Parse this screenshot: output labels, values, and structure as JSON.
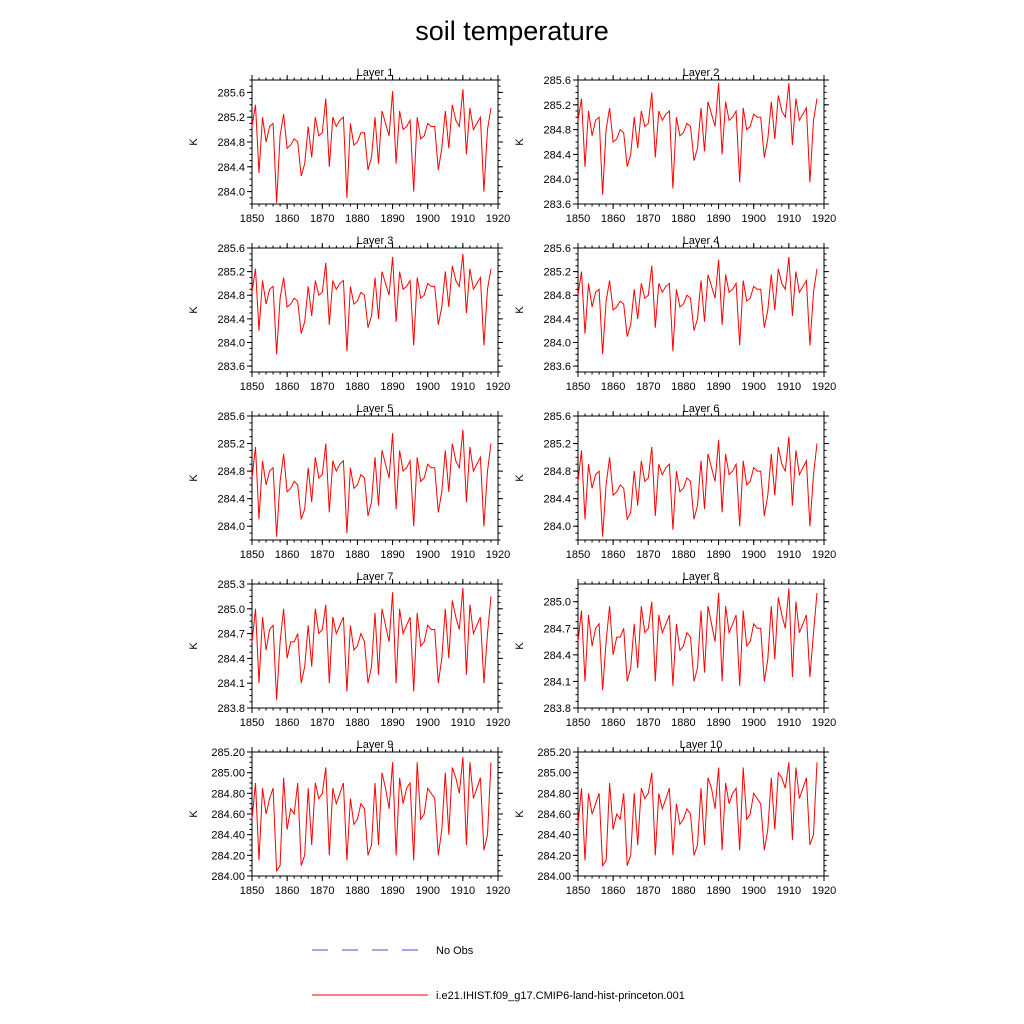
{
  "page": {
    "title": "soil temperature",
    "line_color": "#ff0000",
    "obs_color": "#4a50c8"
  },
  "legend": {
    "obs_label": "No Obs",
    "model_label": "i.e21.IHIST.f09_g17.CMIP6-land-hist-princeton.001",
    "placement": "bottom-center"
  },
  "chart_data": [
    {
      "type": "line",
      "title": "Layer 1",
      "ylabel": "K",
      "xlim": [
        1850,
        1920
      ],
      "ylim": [
        283.8,
        285.8
      ],
      "x_ticks": [
        "1850",
        "1860",
        "1870",
        "1880",
        "1890",
        "1900",
        "1910",
        "1920"
      ],
      "y_ticks": [
        "284.0",
        "284.4",
        "284.8",
        "285.2",
        "285.6"
      ],
      "grid": false,
      "series": [
        {
          "x_start": 1850,
          "x_step": 1,
          "values": [
            285.05,
            285.4,
            284.3,
            285.2,
            284.8,
            285.05,
            285.1,
            283.82,
            284.9,
            285.25,
            284.7,
            284.75,
            284.85,
            284.8,
            284.25,
            284.45,
            285.05,
            284.55,
            285.2,
            284.9,
            284.95,
            285.5,
            284.4,
            285.2,
            285.05,
            285.15,
            285.2,
            283.9,
            285.1,
            284.75,
            284.8,
            284.95,
            284.95,
            284.35,
            284.55,
            285.2,
            284.45,
            285.3,
            285.1,
            284.9,
            285.62,
            284.45,
            285.3,
            285.0,
            285.05,
            285.15,
            284.0,
            285.2,
            284.85,
            284.9,
            285.1,
            285.05,
            285.05,
            284.35,
            284.7,
            285.3,
            284.7,
            285.4,
            285.15,
            285.05,
            285.65,
            284.6,
            285.35,
            285.0,
            285.1,
            285.2,
            284.0,
            285.0,
            285.35
          ]
        }
      ]
    },
    {
      "type": "line",
      "title": "Layer 2",
      "ylabel": "K",
      "xlim": [
        1850,
        1920
      ],
      "ylim": [
        283.6,
        285.6
      ],
      "x_ticks": [
        "1850",
        "1860",
        "1870",
        "1880",
        "1890",
        "1900",
        "1910",
        "1920"
      ],
      "y_ticks": [
        "283.6",
        "284.0",
        "284.4",
        "284.8",
        "285.2",
        "285.6"
      ],
      "grid": false,
      "series": [
        {
          "x_start": 1850,
          "x_step": 1,
          "values": [
            284.95,
            285.3,
            284.2,
            285.1,
            284.7,
            284.95,
            285.0,
            283.75,
            284.8,
            285.15,
            284.6,
            284.65,
            284.8,
            284.75,
            284.2,
            284.4,
            285.0,
            284.5,
            285.1,
            284.85,
            284.9,
            285.4,
            284.35,
            285.1,
            284.95,
            285.05,
            285.1,
            283.85,
            285.0,
            284.7,
            284.75,
            284.9,
            284.85,
            284.3,
            284.5,
            285.15,
            284.45,
            285.25,
            285.05,
            284.85,
            285.55,
            284.4,
            285.25,
            284.95,
            285.0,
            285.1,
            283.95,
            285.15,
            284.8,
            284.85,
            285.05,
            285.0,
            285.0,
            284.35,
            284.65,
            285.25,
            284.65,
            285.35,
            285.1,
            285.0,
            285.55,
            284.55,
            285.3,
            284.95,
            285.05,
            285.15,
            283.95,
            284.95,
            285.3
          ]
        }
      ]
    },
    {
      "type": "line",
      "title": "Layer 3",
      "ylabel": "K",
      "xlim": [
        1850,
        1920
      ],
      "ylim": [
        283.5,
        285.6
      ],
      "x_ticks": [
        "1850",
        "1860",
        "1870",
        "1880",
        "1890",
        "1900",
        "1910",
        "1920"
      ],
      "y_ticks": [
        "283.6",
        "284.0",
        "284.4",
        "284.8",
        "285.2",
        "285.6"
      ],
      "grid": false,
      "series": [
        {
          "x_start": 1850,
          "x_step": 1,
          "values": [
            284.85,
            285.25,
            284.2,
            285.05,
            284.65,
            284.9,
            284.95,
            283.8,
            284.75,
            285.1,
            284.6,
            284.65,
            284.75,
            284.7,
            284.15,
            284.35,
            284.95,
            284.45,
            285.05,
            284.8,
            284.85,
            285.35,
            284.3,
            285.05,
            284.9,
            285.0,
            285.05,
            283.85,
            284.95,
            284.65,
            284.7,
            284.85,
            284.8,
            284.25,
            284.45,
            285.1,
            284.4,
            285.2,
            285.0,
            284.8,
            285.45,
            284.35,
            285.2,
            284.9,
            284.95,
            285.05,
            283.95,
            285.1,
            284.75,
            284.8,
            285.0,
            284.95,
            284.95,
            284.3,
            284.6,
            285.2,
            284.6,
            285.3,
            285.05,
            284.95,
            285.5,
            284.5,
            285.25,
            284.9,
            285.0,
            285.1,
            283.95,
            284.9,
            285.25
          ]
        }
      ]
    },
    {
      "type": "line",
      "title": "Layer 4",
      "ylabel": "K",
      "xlim": [
        1850,
        1920
      ],
      "ylim": [
        283.5,
        285.6
      ],
      "x_ticks": [
        "1850",
        "1860",
        "1870",
        "1880",
        "1890",
        "1900",
        "1910",
        "1920"
      ],
      "y_ticks": [
        "283.6",
        "284.0",
        "284.4",
        "284.8",
        "285.2",
        "285.6"
      ],
      "grid": false,
      "series": [
        {
          "x_start": 1850,
          "x_step": 1,
          "values": [
            284.8,
            285.2,
            284.15,
            285.0,
            284.6,
            284.85,
            284.9,
            283.8,
            284.7,
            285.05,
            284.55,
            284.6,
            284.7,
            284.65,
            284.1,
            284.3,
            284.9,
            284.4,
            285.0,
            284.75,
            284.8,
            285.3,
            284.25,
            285.0,
            284.85,
            284.95,
            285.0,
            283.85,
            284.9,
            284.6,
            284.65,
            284.8,
            284.75,
            284.2,
            284.4,
            285.05,
            284.35,
            285.15,
            284.95,
            284.75,
            285.4,
            284.3,
            285.15,
            284.85,
            284.9,
            285.0,
            283.95,
            285.05,
            284.7,
            284.75,
            284.95,
            284.9,
            284.9,
            284.25,
            284.55,
            285.15,
            284.55,
            285.25,
            285.0,
            284.9,
            285.45,
            284.45,
            285.2,
            284.85,
            284.95,
            285.05,
            283.95,
            284.85,
            285.25
          ]
        }
      ]
    },
    {
      "type": "line",
      "title": "Layer 5",
      "ylabel": "K",
      "xlim": [
        1850,
        1920
      ],
      "ylim": [
        283.8,
        285.6
      ],
      "x_ticks": [
        "1850",
        "1860",
        "1870",
        "1880",
        "1890",
        "1900",
        "1910",
        "1920"
      ],
      "y_ticks": [
        "284.0",
        "284.4",
        "284.8",
        "285.2",
        "285.6"
      ],
      "grid": false,
      "series": [
        {
          "x_start": 1850,
          "x_step": 1,
          "values": [
            284.7,
            285.15,
            284.1,
            284.95,
            284.6,
            284.8,
            284.85,
            283.85,
            284.65,
            285.05,
            284.5,
            284.55,
            284.65,
            284.6,
            284.1,
            284.25,
            284.85,
            284.35,
            285.0,
            284.7,
            284.75,
            285.2,
            284.2,
            284.95,
            284.8,
            284.9,
            284.95,
            283.9,
            284.85,
            284.55,
            284.6,
            284.75,
            284.7,
            284.15,
            284.35,
            285.0,
            284.3,
            285.1,
            284.9,
            284.7,
            285.35,
            284.25,
            285.1,
            284.8,
            284.85,
            284.95,
            284.0,
            285.0,
            284.65,
            284.7,
            284.9,
            284.85,
            284.85,
            284.2,
            284.5,
            285.1,
            284.5,
            285.2,
            284.95,
            284.85,
            285.4,
            284.35,
            285.15,
            284.8,
            284.9,
            285.0,
            284.0,
            284.8,
            285.2
          ]
        }
      ]
    },
    {
      "type": "line",
      "title": "Layer 6",
      "ylabel": "K",
      "xlim": [
        1850,
        1920
      ],
      "ylim": [
        283.8,
        285.6
      ],
      "x_ticks": [
        "1850",
        "1860",
        "1870",
        "1880",
        "1890",
        "1900",
        "1910",
        "1920"
      ],
      "y_ticks": [
        "284.0",
        "284.4",
        "284.8",
        "285.2",
        "285.6"
      ],
      "grid": false,
      "series": [
        {
          "x_start": 1850,
          "x_step": 1,
          "values": [
            284.65,
            285.1,
            284.1,
            284.9,
            284.55,
            284.75,
            284.8,
            283.85,
            284.6,
            285.0,
            284.45,
            284.5,
            284.6,
            284.55,
            284.1,
            284.2,
            284.8,
            284.3,
            284.95,
            284.65,
            284.7,
            285.15,
            284.15,
            284.9,
            284.75,
            284.85,
            284.9,
            283.95,
            284.8,
            284.5,
            284.55,
            284.7,
            284.65,
            284.1,
            284.3,
            284.95,
            284.25,
            285.05,
            284.85,
            284.65,
            285.25,
            284.2,
            285.05,
            284.75,
            284.8,
            284.9,
            284.0,
            284.95,
            284.6,
            284.65,
            284.85,
            284.8,
            284.8,
            284.15,
            284.45,
            285.05,
            284.45,
            285.15,
            284.9,
            284.8,
            285.3,
            284.3,
            285.1,
            284.75,
            284.85,
            284.95,
            284.0,
            284.75,
            285.2
          ]
        }
      ]
    },
    {
      "type": "line",
      "title": "Layer 7",
      "ylabel": "K",
      "xlim": [
        1850,
        1920
      ],
      "ylim": [
        283.8,
        285.3
      ],
      "x_ticks": [
        "1850",
        "1860",
        "1870",
        "1880",
        "1890",
        "1900",
        "1910",
        "1920"
      ],
      "y_ticks": [
        "283.8",
        "284.1",
        "284.4",
        "284.7",
        "285.0",
        "285.3"
      ],
      "grid": false,
      "series": [
        {
          "x_start": 1850,
          "x_step": 1,
          "values": [
            284.6,
            285.0,
            284.1,
            284.9,
            284.5,
            284.75,
            284.8,
            283.9,
            284.6,
            285.0,
            284.4,
            284.6,
            284.6,
            284.7,
            284.1,
            284.3,
            284.8,
            284.3,
            285.0,
            284.7,
            284.75,
            285.05,
            284.1,
            284.9,
            284.7,
            284.8,
            284.9,
            284.0,
            284.8,
            284.5,
            284.55,
            284.7,
            284.6,
            284.1,
            284.3,
            284.95,
            284.2,
            285.0,
            284.8,
            284.6,
            285.2,
            284.1,
            285.0,
            284.7,
            284.8,
            284.9,
            284.0,
            284.95,
            284.55,
            284.6,
            284.8,
            284.75,
            284.75,
            284.1,
            284.4,
            285.0,
            284.4,
            285.1,
            284.9,
            284.75,
            285.25,
            284.2,
            285.05,
            284.7,
            284.8,
            284.9,
            284.1,
            284.7,
            285.15
          ]
        }
      ]
    },
    {
      "type": "line",
      "title": "Layer 8",
      "ylabel": "K",
      "xlim": [
        1850,
        1920
      ],
      "ylim": [
        283.8,
        285.2
      ],
      "x_ticks": [
        "1850",
        "1860",
        "1870",
        "1880",
        "1890",
        "1900",
        "1910",
        "1920"
      ],
      "y_ticks": [
        "283.8",
        "284.1",
        "284.4",
        "284.7",
        "285.0"
      ],
      "grid": false,
      "series": [
        {
          "x_start": 1850,
          "x_step": 1,
          "values": [
            284.55,
            284.9,
            284.1,
            284.85,
            284.5,
            284.7,
            284.75,
            284.0,
            284.55,
            284.95,
            284.4,
            284.6,
            284.6,
            284.7,
            284.1,
            284.25,
            284.75,
            284.25,
            284.95,
            284.65,
            284.7,
            285.0,
            284.1,
            284.85,
            284.65,
            284.75,
            284.85,
            284.05,
            284.75,
            284.45,
            284.5,
            284.65,
            284.6,
            284.1,
            284.25,
            284.9,
            284.2,
            284.95,
            284.75,
            284.55,
            285.1,
            284.1,
            284.95,
            284.65,
            284.75,
            284.85,
            284.05,
            284.9,
            284.5,
            284.55,
            284.75,
            284.7,
            284.7,
            284.1,
            284.35,
            284.95,
            284.35,
            285.05,
            284.85,
            284.7,
            285.15,
            284.15,
            285.0,
            284.65,
            284.75,
            284.85,
            284.15,
            284.65,
            285.1
          ]
        }
      ]
    },
    {
      "type": "line",
      "title": "Layer 9",
      "ylabel": "K",
      "xlim": [
        1850,
        1920
      ],
      "ylim": [
        284.0,
        285.2
      ],
      "x_ticks": [
        "1850",
        "1860",
        "1870",
        "1880",
        "1890",
        "1900",
        "1910",
        "1920"
      ],
      "y_ticks": [
        "284.00",
        "284.20",
        "284.40",
        "284.60",
        "284.80",
        "285.00",
        "285.20"
      ],
      "grid": false,
      "series": [
        {
          "x_start": 1850,
          "x_step": 1,
          "values": [
            284.55,
            284.9,
            284.15,
            284.85,
            284.6,
            284.75,
            284.85,
            284.05,
            284.1,
            284.95,
            284.45,
            284.65,
            284.6,
            284.9,
            284.1,
            284.2,
            284.85,
            284.3,
            284.9,
            284.75,
            284.8,
            285.05,
            284.2,
            284.85,
            284.7,
            284.8,
            284.9,
            284.15,
            284.75,
            284.5,
            284.55,
            284.7,
            284.65,
            284.2,
            284.3,
            284.9,
            284.3,
            285.0,
            284.85,
            284.65,
            285.1,
            284.2,
            284.95,
            284.7,
            284.85,
            284.9,
            284.15,
            285.1,
            284.55,
            284.6,
            284.85,
            284.8,
            284.75,
            284.2,
            284.45,
            285.0,
            284.4,
            285.05,
            284.95,
            284.8,
            285.15,
            284.3,
            285.1,
            284.75,
            284.85,
            284.95,
            284.25,
            284.4,
            285.1
          ]
        }
      ]
    },
    {
      "type": "line",
      "title": "Layer 10",
      "ylabel": "K",
      "xlim": [
        1850,
        1920
      ],
      "ylim": [
        284.0,
        285.2
      ],
      "x_ticks": [
        "1850",
        "1860",
        "1870",
        "1880",
        "1890",
        "1900",
        "1910",
        "1920"
      ],
      "y_ticks": [
        "284.00",
        "284.20",
        "284.40",
        "284.60",
        "284.80",
        "285.00",
        "285.20"
      ],
      "grid": false,
      "series": [
        {
          "x_start": 1850,
          "x_step": 1,
          "values": [
            284.5,
            284.85,
            284.15,
            284.8,
            284.6,
            284.7,
            284.8,
            284.1,
            284.15,
            284.9,
            284.45,
            284.6,
            284.55,
            284.8,
            284.1,
            284.2,
            284.8,
            284.3,
            284.85,
            284.75,
            284.8,
            285.0,
            284.2,
            284.8,
            284.65,
            284.75,
            284.85,
            284.2,
            284.7,
            284.5,
            284.55,
            284.65,
            284.6,
            284.2,
            284.3,
            284.85,
            284.3,
            284.95,
            284.85,
            284.65,
            285.05,
            284.25,
            284.9,
            284.7,
            284.8,
            284.85,
            284.25,
            285.05,
            284.55,
            284.6,
            284.8,
            284.75,
            284.7,
            284.25,
            284.45,
            284.95,
            284.45,
            285.0,
            284.95,
            284.85,
            285.1,
            284.35,
            285.05,
            284.75,
            284.85,
            284.95,
            284.3,
            284.4,
            285.1
          ]
        }
      ]
    }
  ]
}
